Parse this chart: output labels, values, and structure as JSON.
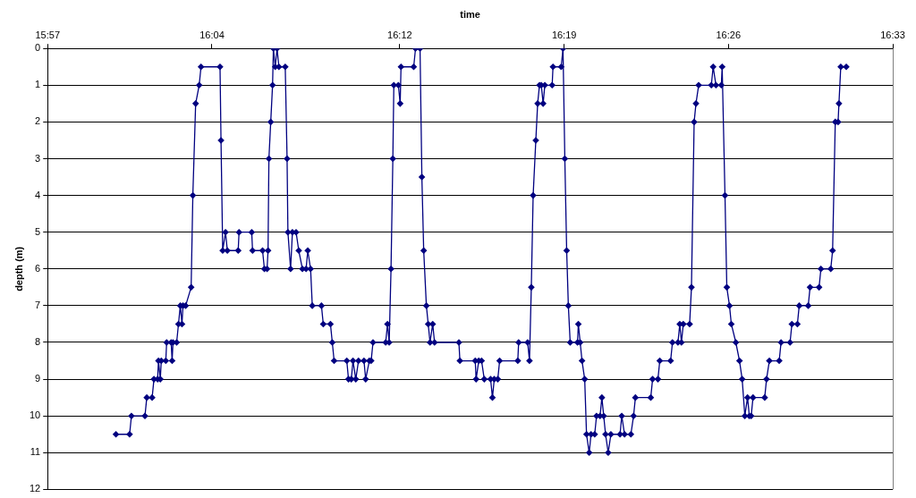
{
  "chart_data": {
    "type": "line",
    "xlabel": "time",
    "ylabel": "depth (m)",
    "xlim": [
      15.95,
      16.55
    ],
    "xticks": [
      {
        "value": 15.95,
        "label": "15:57"
      },
      {
        "value": 16.0667,
        "label": "16:04"
      },
      {
        "value": 16.2,
        "label": "16:12"
      },
      {
        "value": 16.3167,
        "label": "16:19"
      },
      {
        "value": 16.4333,
        "label": "16:26"
      },
      {
        "value": 16.55,
        "label": "16:33"
      }
    ],
    "ylim": [
      12,
      0
    ],
    "yticks": [
      0,
      1,
      2,
      3,
      4,
      5,
      6,
      7,
      8,
      9,
      10,
      11,
      12
    ],
    "grid": "y",
    "legend": false,
    "marker": "diamond",
    "line_style": "solid",
    "series": [
      {
        "color": "#000080",
        "x": [
          15.9985,
          16.0082,
          16.0095,
          16.0191,
          16.0204,
          16.0242,
          16.0255,
          16.0281,
          16.0287,
          16.03,
          16.0307,
          16.0339,
          16.0345,
          16.0377,
          16.0384,
          16.039,
          16.0416,
          16.0429,
          16.0442,
          16.0454,
          16.0461,
          16.048,
          16.0519,
          16.0531,
          16.0551,
          16.0576,
          16.0589,
          16.0724,
          16.0731,
          16.0743,
          16.0763,
          16.0776,
          16.0853,
          16.0859,
          16.0949,
          16.0955,
          16.1026,
          16.1039,
          16.1058,
          16.1065,
          16.1071,
          16.1084,
          16.1097,
          16.1103,
          16.1116,
          16.1129,
          16.1142,
          16.1187,
          16.12,
          16.1206,
          16.1225,
          16.1238,
          16.1264,
          16.1283,
          16.1309,
          16.1335,
          16.1347,
          16.1367,
          16.1379,
          16.1444,
          16.1457,
          16.1508,
          16.1521,
          16.1534,
          16.1624,
          16.1636,
          16.1656,
          16.1668,
          16.1688,
          16.1707,
          16.1746,
          16.1758,
          16.1784,
          16.1797,
          16.181,
          16.19,
          16.1913,
          16.1925,
          16.1938,
          16.1951,
          16.1958,
          16.199,
          16.2003,
          16.2009,
          16.2099,
          16.2112,
          16.2144,
          16.2157,
          16.217,
          16.2189,
          16.2202,
          16.2215,
          16.2234,
          16.2247,
          16.242,
          16.2427,
          16.2536,
          16.2542,
          16.2561,
          16.2581,
          16.26,
          16.2645,
          16.2658,
          16.2671,
          16.2696,
          16.2709,
          16.2838,
          16.2844,
          16.2908,
          16.2921,
          16.2934,
          16.2947,
          16.2966,
          16.2979,
          16.2992,
          16.3005,
          16.3018,
          16.303,
          16.3082,
          16.3088,
          16.3146,
          16.3159,
          16.3172,
          16.3185,
          16.3197,
          16.321,
          16.3262,
          16.3268,
          16.3281,
          16.3294,
          16.3313,
          16.3326,
          16.3345,
          16.3358,
          16.3384,
          16.3397,
          16.3422,
          16.3435,
          16.3448,
          16.3461,
          16.348,
          16.3499,
          16.3564,
          16.3576,
          16.3596,
          16.3641,
          16.366,
          16.3673,
          16.3782,
          16.3795,
          16.3833,
          16.3846,
          16.3923,
          16.3936,
          16.3975,
          16.3988,
          16.4,
          16.4013,
          16.4058,
          16.4071,
          16.409,
          16.4103,
          16.4122,
          16.4212,
          16.4225,
          16.4245,
          16.4283,
          16.4289,
          16.4309,
          16.4322,
          16.4341,
          16.4354,
          16.4386,
          16.4412,
          16.4431,
          16.445,
          16.4469,
          16.4482,
          16.4495,
          16.4508,
          16.4591,
          16.4604,
          16.4624,
          16.4694,
          16.4707,
          16.4771,
          16.4784,
          16.4823,
          16.4836,
          16.49,
          16.4913,
          16.4977,
          16.499,
          16.506,
          16.5073,
          16.5092,
          16.5112,
          16.5118,
          16.5131,
          16.517
        ],
        "values": [
          10.5,
          10.5,
          10,
          10,
          9.5,
          9.5,
          9,
          9,
          8.5,
          9,
          8.5,
          8.5,
          8,
          8,
          8.5,
          8,
          8,
          7.5,
          7,
          7.5,
          7,
          7,
          6.5,
          4,
          1.5,
          1,
          0.5,
          0.5,
          2.5,
          5.5,
          5,
          5.5,
          5.5,
          5,
          5,
          5.5,
          5.5,
          6,
          6,
          5.5,
          3,
          2,
          1,
          0,
          0.5,
          0,
          0.5,
          0.5,
          3,
          5,
          6,
          5,
          5,
          5.5,
          6,
          6,
          5.5,
          6,
          7,
          7,
          7.5,
          7.5,
          8,
          8.5,
          8.5,
          9,
          9,
          8.5,
          9,
          8.5,
          8.5,
          9,
          8.5,
          8.5,
          8,
          8,
          7.5,
          8,
          6,
          3,
          1,
          1,
          1.5,
          0.5,
          0.5,
          0,
          0,
          3.5,
          5.5,
          7,
          7.5,
          8,
          7.5,
          8,
          8,
          8.5,
          8.5,
          9,
          8.5,
          8.5,
          9,
          9,
          9.5,
          9,
          9,
          8.5,
          8.5,
          8,
          8,
          8.5,
          6.5,
          4,
          2.5,
          1.5,
          1,
          1,
          1.5,
          1,
          1,
          0.5,
          0.5,
          0,
          3,
          5.5,
          7,
          8,
          8,
          7.5,
          8,
          8.5,
          9,
          10.5,
          11,
          10.5,
          10.5,
          10,
          10,
          9.5,
          10,
          10.5,
          11,
          10.5,
          10.5,
          10,
          10.5,
          10.5,
          10,
          9.5,
          9.5,
          9,
          9,
          8.5,
          8.5,
          8,
          8,
          7.5,
          8,
          7.5,
          7.5,
          6.5,
          2,
          1.5,
          1,
          1,
          0.5,
          1,
          1,
          0.5,
          4,
          6.5,
          7,
          7.5,
          8,
          8.5,
          9,
          10,
          9.5,
          10,
          10,
          9.5,
          9.5,
          9,
          8.5,
          8.5,
          8,
          8,
          7.5,
          7.5,
          7,
          7,
          6.5,
          6.5,
          6,
          6,
          5.5,
          2,
          2,
          1.5,
          0.5,
          0.5
        ]
      }
    ]
  }
}
